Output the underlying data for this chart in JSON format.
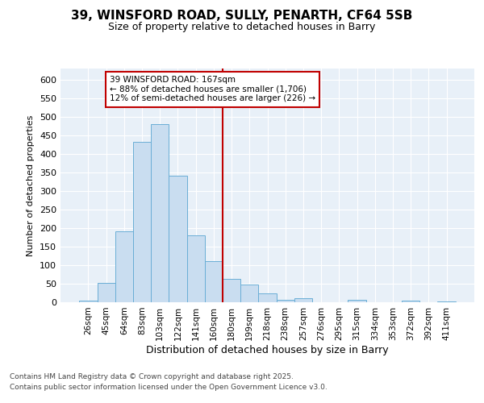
{
  "title_line1": "39, WINSFORD ROAD, SULLY, PENARTH, CF64 5SB",
  "title_line2": "Size of property relative to detached houses in Barry",
  "xlabel": "Distribution of detached houses by size in Barry",
  "ylabel": "Number of detached properties",
  "categories": [
    "26sqm",
    "45sqm",
    "64sqm",
    "83sqm",
    "103sqm",
    "122sqm",
    "141sqm",
    "160sqm",
    "180sqm",
    "199sqm",
    "218sqm",
    "238sqm",
    "257sqm",
    "276sqm",
    "295sqm",
    "315sqm",
    "334sqm",
    "353sqm",
    "372sqm",
    "392sqm",
    "411sqm"
  ],
  "values": [
    5,
    52,
    191,
    432,
    481,
    341,
    180,
    110,
    62,
    47,
    23,
    7,
    10,
    0,
    0,
    6,
    0,
    0,
    5,
    0,
    3
  ],
  "bar_color": "#c9ddf0",
  "bar_edge_color": "#6aaed6",
  "vline_color": "#c00000",
  "vline_index": 7,
  "annotation_text": "39 WINSFORD ROAD: 167sqm\n← 88% of detached houses are smaller (1,706)\n12% of semi-detached houses are larger (226) →",
  "annotation_box_facecolor": "#ffffff",
  "annotation_box_edgecolor": "#c00000",
  "ylim": [
    0,
    630
  ],
  "yticks": [
    0,
    50,
    100,
    150,
    200,
    250,
    300,
    350,
    400,
    450,
    500,
    550,
    600
  ],
  "fig_facecolor": "#ffffff",
  "ax_facecolor": "#e8f0f8",
  "grid_color": "#ffffff",
  "footer_line1": "Contains HM Land Registry data © Crown copyright and database right 2025.",
  "footer_line2": "Contains public sector information licensed under the Open Government Licence v3.0."
}
